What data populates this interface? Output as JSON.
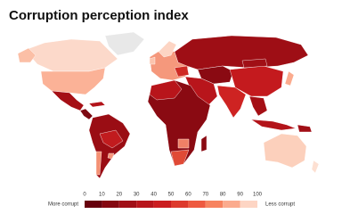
{
  "title": "Corruption perception index",
  "legend": {
    "low_label": "More corrupt",
    "high_label": "Less corrupt",
    "ticks": [
      0,
      10,
      20,
      30,
      40,
      50,
      60,
      70,
      80,
      90,
      100
    ],
    "colors": [
      "#67000d",
      "#850811",
      "#a10f16",
      "#b8151b",
      "#cb1d20",
      "#dd3a2d",
      "#ee5a40",
      "#f7835f",
      "#fbab8e",
      "#fdd5c4"
    ]
  }
}
